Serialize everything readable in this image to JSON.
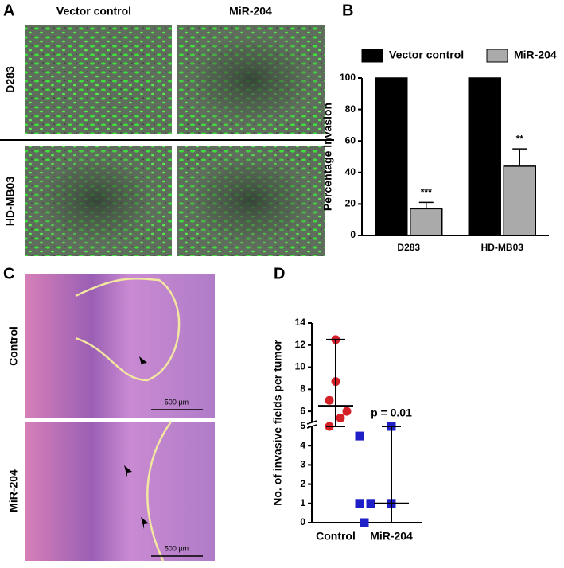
{
  "panel_labels": [
    "A",
    "B",
    "C",
    "D"
  ],
  "panel_a": {
    "columns": [
      "Vector control",
      "MiR-204"
    ],
    "rows": [
      "D283",
      "HD-MB03"
    ]
  },
  "panel_c": {
    "rows": [
      "Control",
      "MiR-204"
    ],
    "scale_bar": "500 µm"
  },
  "chart_data": [
    {
      "type": "bar",
      "ylabel": "Percentage invasion",
      "categories": [
        "D283",
        "HD-MB03"
      ],
      "series": [
        {
          "name": "Vector control",
          "color": "#000000",
          "values": [
            100,
            100
          ]
        },
        {
          "name": "MiR-204",
          "color": "#aaaaaa",
          "values": [
            17,
            44
          ],
          "errors": [
            4,
            11
          ]
        }
      ],
      "annotations": [
        "***",
        "**"
      ],
      "ylim": [
        0,
        100
      ],
      "yticks": [
        0,
        20,
        40,
        60,
        80,
        100
      ],
      "legend": "top"
    },
    {
      "type": "scatter",
      "ylabel": "No. of invasive fields per tumor",
      "categories": [
        "Control",
        "MiR-204"
      ],
      "groups": [
        {
          "color": "#d42027",
          "values": [
            12.5,
            8.7,
            7,
            6,
            5.4,
            5
          ],
          "median": 6.5,
          "range": [
            5,
            12.5
          ]
        },
        {
          "color": "#1f1fc8",
          "values": [
            4.5,
            5,
            1,
            1,
            1,
            0
          ],
          "median": 1,
          "range": [
            0,
            5
          ]
        }
      ],
      "annotation": "p = 0.01",
      "ylim": [
        0,
        14
      ],
      "ybreak": 5,
      "yticks": [
        0,
        1,
        2,
        3,
        4,
        5,
        6,
        8,
        10,
        12,
        14
      ]
    }
  ]
}
